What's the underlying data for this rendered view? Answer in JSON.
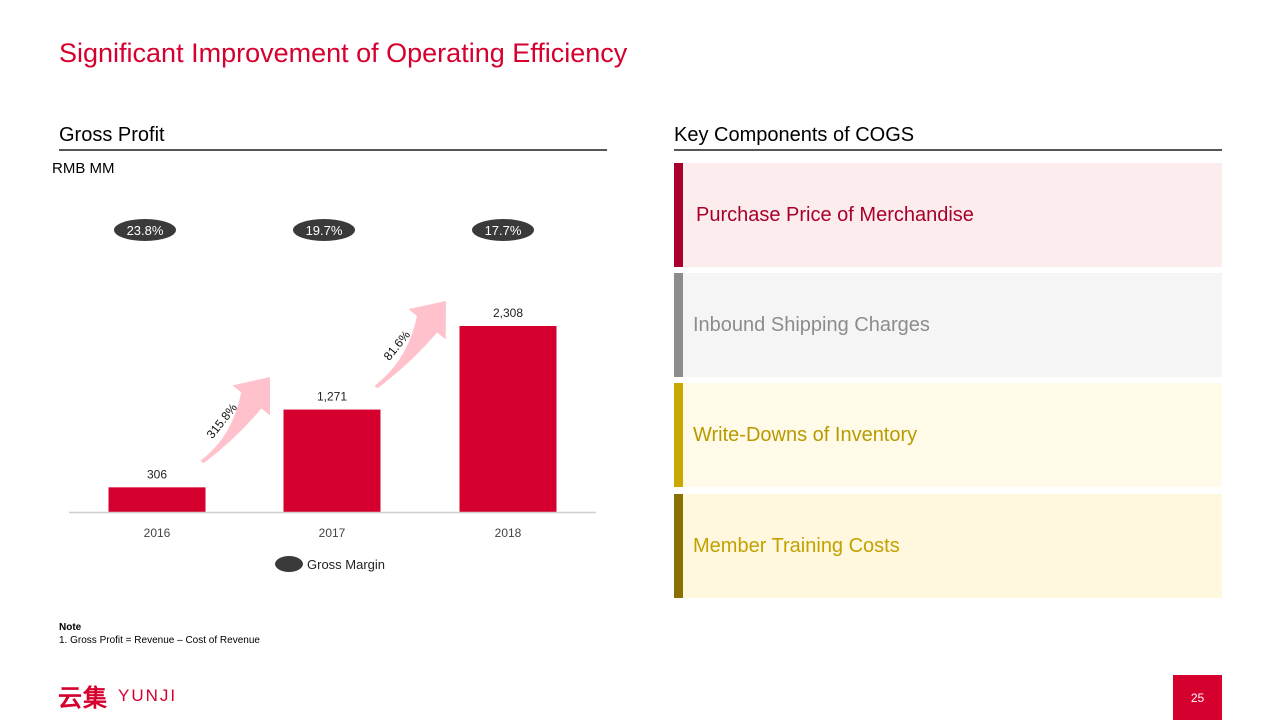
{
  "page": {
    "title": "Significant Improvement of Operating Efficiency",
    "page_number": "25"
  },
  "left_panel": {
    "heading": "Gross Profit",
    "units": "RMB MM"
  },
  "right_panel": {
    "heading": "Key Components of COGS",
    "items": [
      {
        "label": "Purchase Price of Merchandise",
        "bg": "#fdecee",
        "bar": "#a8002a",
        "text_color": "#a8002a"
      },
      {
        "label": "Inbound Shipping Charges",
        "bg": "#f5f5f5",
        "bar": "#8c8c8c",
        "text_color": "#8c8c8c"
      },
      {
        "label": "Write-Downs of Inventory",
        "bg": "#fffbe8",
        "bar": "#c9a800",
        "text_color": "#b89a00"
      },
      {
        "label": "Member Training Costs",
        "bg": "#fff8df",
        "bar": "#8a7000",
        "text_color": "#c2a100"
      }
    ]
  },
  "chart_data": {
    "type": "bar",
    "categories": [
      "2016",
      "2017",
      "2018"
    ],
    "series": [
      {
        "name": "Gross Profit",
        "values": [
          306,
          1271,
          2308
        ],
        "value_labels": [
          "306",
          "1,271",
          "2,308"
        ],
        "color": "#d6002f"
      }
    ],
    "gross_margin": {
      "label": "Gross Margin",
      "values": [
        "23.8%",
        "19.7%",
        "17.7%"
      ],
      "color": "#3a3a3a"
    },
    "growth": [
      "315.8%",
      "81.6%"
    ],
    "growth_arrow_color": "#ffc1cc",
    "ylim": [
      0,
      2308
    ]
  },
  "note": {
    "title": "Note",
    "lines": [
      "1. Gross Profit = Revenue – Cost of Revenue"
    ]
  },
  "logo": {
    "mark": "云集",
    "text": "YUNJI"
  }
}
